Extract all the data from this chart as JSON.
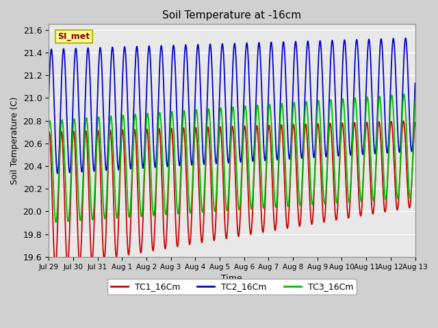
{
  "title": "Soil Temperature at -16cm",
  "xlabel": "Time",
  "ylabel": "Soil Temperature (C)",
  "ylim": [
    19.6,
    21.65
  ],
  "yticks": [
    19.6,
    19.8,
    20.0,
    20.2,
    20.4,
    20.6,
    20.8,
    21.0,
    21.2,
    21.4,
    21.6
  ],
  "bg_color": "#e8e8e8",
  "fig_bg_color": "#d0d0d0",
  "grid_color": "#ffffff",
  "legend_label": "SI_met",
  "legend_bg": "#ffff99",
  "legend_border": "#b8b800",
  "line_colors": {
    "TC1_16Cm": "#cc0000",
    "TC2_16Cm": "#0000cc",
    "TC3_16Cm": "#00bb00"
  },
  "line_width": 1.3,
  "xtick_labels": [
    "Jul 29",
    "Jul 30",
    "Jul 31",
    "Aug 1",
    "Aug 2",
    "Aug 3",
    "Aug 4",
    "Aug 5",
    "Aug 6",
    "Aug 7",
    "Aug 8",
    "Aug 9",
    "Aug 10",
    "Aug 11",
    "Aug 12",
    "Aug 13"
  ],
  "num_days": 15,
  "points_per_day": 288
}
